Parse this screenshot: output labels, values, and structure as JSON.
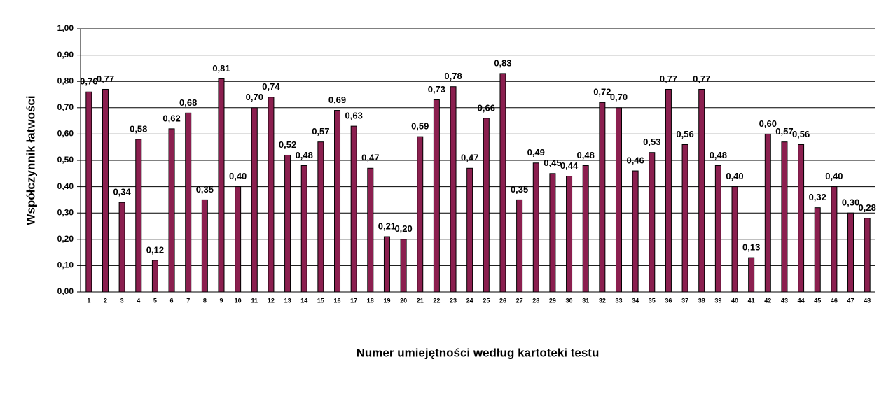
{
  "chart_data": {
    "type": "bar",
    "y_label": "Współczynnik łatwości",
    "x_label": "Numer umiejętności według kartoteki testu",
    "categories": [
      "1",
      "2",
      "3",
      "4",
      "5",
      "6",
      "7",
      "8",
      "9",
      "10",
      "11",
      "12",
      "13",
      "14",
      "15",
      "16",
      "17",
      "18",
      "19",
      "20",
      "21",
      "22",
      "23",
      "24",
      "25",
      "26",
      "27",
      "28",
      "29",
      "30",
      "31",
      "32",
      "33",
      "34",
      "35",
      "36",
      "37",
      "38",
      "39",
      "40",
      "41",
      "42",
      "43",
      "44",
      "45",
      "46",
      "47",
      "48"
    ],
    "values": [
      0.76,
      0.77,
      0.34,
      0.58,
      0.12,
      0.62,
      0.68,
      0.35,
      0.81,
      0.4,
      0.7,
      0.74,
      0.52,
      0.48,
      0.57,
      0.69,
      0.63,
      0.47,
      0.21,
      0.2,
      0.59,
      0.73,
      0.78,
      0.47,
      0.66,
      0.83,
      0.35,
      0.49,
      0.45,
      0.44,
      0.48,
      0.72,
      0.7,
      0.46,
      0.53,
      0.77,
      0.56,
      0.77,
      0.48,
      0.4,
      0.13,
      0.6,
      0.57,
      0.56,
      0.32,
      0.4,
      0.3,
      0.28
    ],
    "value_labels": [
      "0,76",
      "0,77",
      "0,34",
      "0,58",
      "0,12",
      "0,62",
      "0,68",
      "0,35",
      "0,81",
      "0,40",
      "0,70",
      "0,74",
      "0,52",
      "0,48",
      "0,57",
      "0,69",
      "0,63",
      "0,47",
      "0,21",
      "0,20",
      "0,59",
      "0,73",
      "0,78",
      "0,47",
      "0,66",
      "0,83",
      "0,35",
      "0,49",
      "0,45",
      "0,44",
      "0,48",
      "0,72",
      "0,70",
      "0,46",
      "0,53",
      "0,77",
      "0,56",
      "0,77",
      "0,48",
      "0,40",
      "0,13",
      "0,60",
      "0,57",
      "0,56",
      "0,32",
      "0,40",
      "0,30",
      "0,28"
    ],
    "color": "#8b1f4f",
    "ylim": [
      0,
      1
    ],
    "yticks": [
      {
        "value": 0,
        "label": "0,00"
      },
      {
        "value": 0.1,
        "label": "0,10"
      },
      {
        "value": 0.2,
        "label": "0,20"
      },
      {
        "value": 0.3,
        "label": "0,30"
      },
      {
        "value": 0.4,
        "label": "0,40"
      },
      {
        "value": 0.5,
        "label": "0,50"
      },
      {
        "value": 0.6,
        "label": "0,60"
      },
      {
        "value": 0.7,
        "label": "0,70"
      },
      {
        "value": 0.8,
        "label": "0,80"
      },
      {
        "value": 0.9,
        "label": "0,90"
      },
      {
        "value": 1,
        "label": "1,00"
      }
    ],
    "grid": true
  }
}
